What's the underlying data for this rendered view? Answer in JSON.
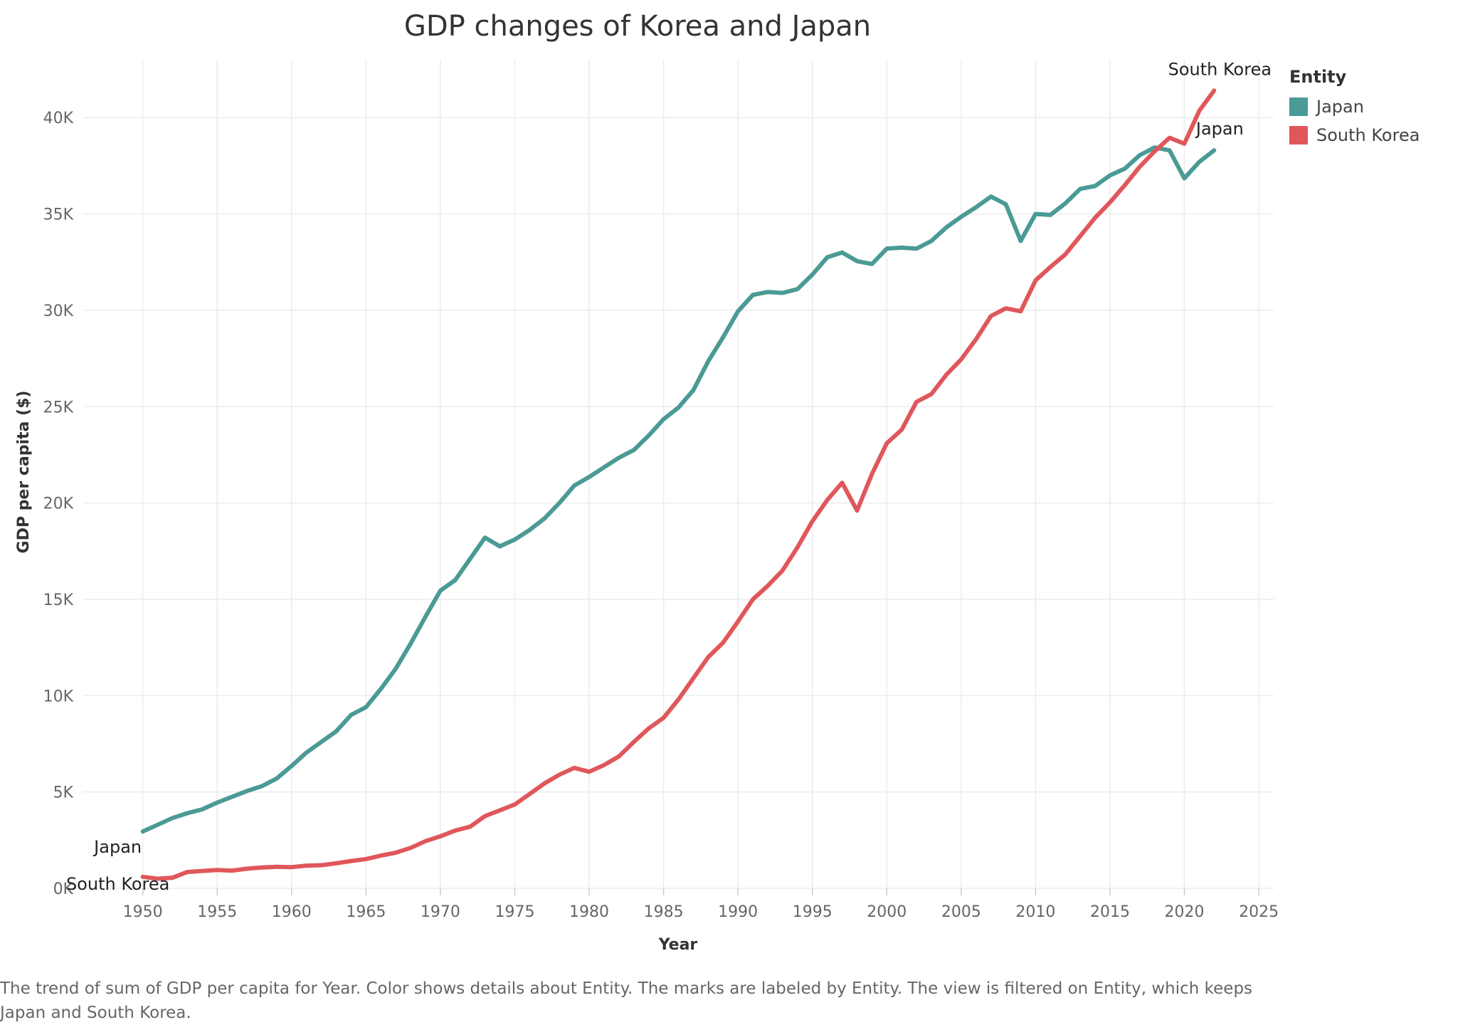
{
  "chart_data": {
    "type": "line",
    "title": "GDP changes of Korea and Japan",
    "xlabel": "Year",
    "ylabel": "GDP per capita ($)",
    "xlim": [
      1946,
      2026
    ],
    "ylim": [
      0,
      43000
    ],
    "x_ticks": [
      1950,
      1955,
      1960,
      1965,
      1970,
      1975,
      1980,
      1985,
      1990,
      1995,
      2000,
      2005,
      2010,
      2015,
      2020,
      2025
    ],
    "y_ticks": [
      0,
      5000,
      10000,
      15000,
      20000,
      25000,
      30000,
      35000,
      40000
    ],
    "y_tick_labels": [
      "0K",
      "5K",
      "10K",
      "15K",
      "20K",
      "25K",
      "30K",
      "35K",
      "40K"
    ],
    "grid": true,
    "legend_title": "Entity",
    "legend_position": "top-right",
    "x": [
      1950,
      1951,
      1952,
      1953,
      1954,
      1955,
      1956,
      1957,
      1958,
      1959,
      1960,
      1961,
      1962,
      1963,
      1964,
      1965,
      1966,
      1967,
      1968,
      1969,
      1970,
      1971,
      1972,
      1973,
      1974,
      1975,
      1976,
      1977,
      1978,
      1979,
      1980,
      1981,
      1982,
      1983,
      1984,
      1985,
      1986,
      1987,
      1988,
      1989,
      1990,
      1991,
      1992,
      1993,
      1994,
      1995,
      1996,
      1997,
      1998,
      1999,
      2000,
      2001,
      2002,
      2003,
      2004,
      2005,
      2006,
      2007,
      2008,
      2009,
      2010,
      2011,
      2012,
      2013,
      2014,
      2015,
      2016,
      2017,
      2018,
      2019,
      2020,
      2021,
      2022
    ],
    "series": [
      {
        "name": "Japan",
        "color": "#4a9a95",
        "values": [
          2950,
          3300,
          3650,
          3900,
          4100,
          4450,
          4750,
          5050,
          5300,
          5700,
          6350,
          7050,
          7600,
          8150,
          9000,
          9400,
          10350,
          11400,
          12700,
          14100,
          15450,
          16000,
          17100,
          18200,
          17750,
          18100,
          18600,
          19200,
          20000,
          20900,
          21350,
          21850,
          22350,
          22750,
          23500,
          24350,
          24950,
          25850,
          27350,
          28600,
          29950,
          30800,
          30950,
          30900,
          31100,
          31850,
          32750,
          33000,
          32550,
          32400,
          33200,
          33250,
          33200,
          33600,
          34300,
          34850,
          35350,
          35900,
          35500,
          33600,
          35000,
          34950,
          35550,
          36300,
          36450,
          37000,
          37350,
          38050,
          38450,
          38300,
          36850,
          37700,
          38300
        ]
      },
      {
        "name": "South Korea",
        "color": "#e0575b",
        "values": [
          600,
          500,
          550,
          850,
          900,
          950,
          920,
          1020,
          1080,
          1120,
          1100,
          1180,
          1200,
          1300,
          1420,
          1520,
          1700,
          1850,
          2100,
          2450,
          2700,
          3000,
          3200,
          3750,
          4050,
          4350,
          4900,
          5450,
          5900,
          6250,
          6050,
          6400,
          6850,
          7600,
          8300,
          8850,
          9800,
          10900,
          12000,
          12750,
          13850,
          15000,
          15700,
          16500,
          17700,
          19050,
          20150,
          21050,
          19600,
          21500,
          23100,
          23800,
          25250,
          25650,
          26650,
          27450,
          28500,
          29700,
          30100,
          29950,
          31550,
          32250,
          32900,
          33850,
          34800,
          35600,
          36500,
          37450,
          38250,
          38950,
          38650,
          40350,
          41400
        ]
      }
    ],
    "annotations": [
      {
        "text": "South Korea",
        "series": "South Korea",
        "at": "end"
      },
      {
        "text": "Japan",
        "series": "Japan",
        "at": "end"
      },
      {
        "text": "Japan",
        "series": "Japan",
        "at": "start"
      },
      {
        "text": "South Korea",
        "series": "South Korea",
        "at": "start"
      }
    ]
  },
  "caption": "The trend of sum of GDP per capita for Year.  Color shows details about Entity.  The marks are labeled by Entity. The view is filtered on Entity, which keeps Japan and South Korea."
}
